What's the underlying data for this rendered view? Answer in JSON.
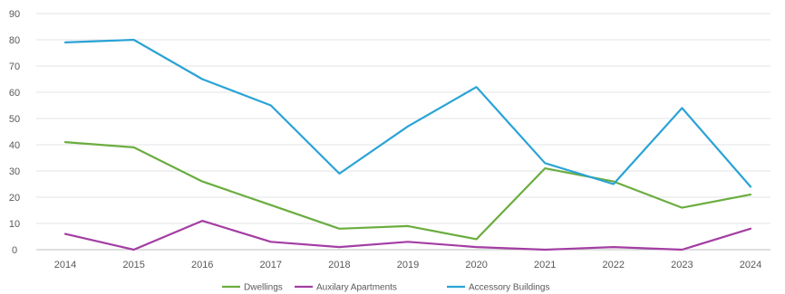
{
  "chart_data": {
    "type": "line",
    "x": [
      "2014",
      "2015",
      "2016",
      "2017",
      "2018",
      "2019",
      "2020",
      "2021",
      "2022",
      "2023",
      "2024"
    ],
    "ylim": [
      0,
      90
    ],
    "yticks": [
      0,
      10,
      20,
      30,
      40,
      50,
      60,
      70,
      80,
      90
    ],
    "grid": true,
    "legend_position": "bottom",
    "series": [
      {
        "name": "Dwellings",
        "color": "#6aad3f",
        "values": [
          41,
          39,
          26,
          17,
          8,
          9,
          4,
          31,
          26,
          16,
          21
        ]
      },
      {
        "name": "Auxilary Apartments",
        "color": "#a33ea3",
        "values": [
          6,
          0,
          11,
          3,
          1,
          3,
          1,
          0,
          1,
          0,
          8
        ]
      },
      {
        "name": "Accessory Buildings",
        "color": "#2aa3d6",
        "values": [
          79,
          80,
          65,
          55,
          29,
          47,
          62,
          33,
          25,
          54,
          24
        ]
      }
    ]
  }
}
